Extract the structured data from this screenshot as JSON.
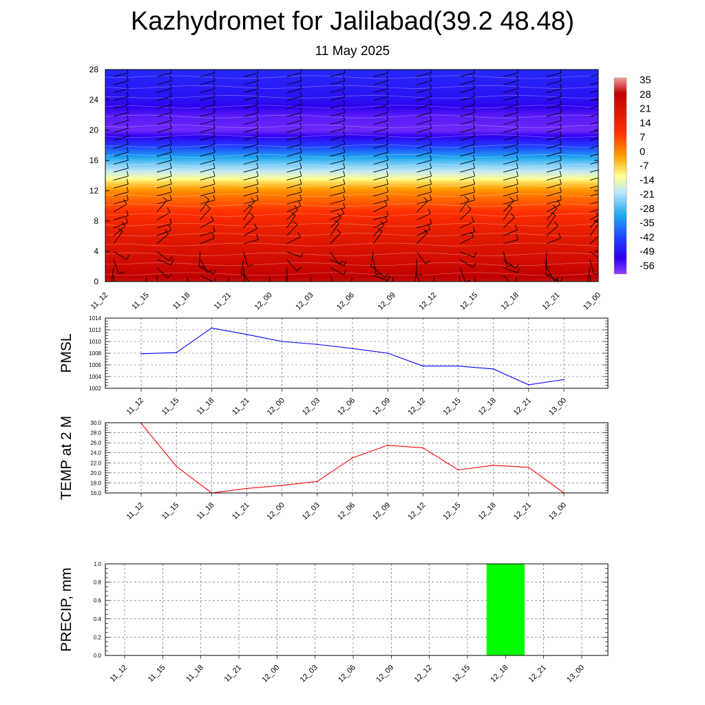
{
  "title": "Kazhydromet for Jalilabad(39.2 48.48)",
  "subtitle": "11 May 2025",
  "times": [
    "11_12",
    "11_15",
    "11_18",
    "11_21",
    "12_00",
    "12_03",
    "12_06",
    "12_09",
    "12_12",
    "12_15",
    "12_18",
    "12_21",
    "13_00"
  ],
  "colors": {
    "pmsl_line": "#0000ff",
    "temp_line": "#ff0000",
    "precip_bar": "#00ff00",
    "grid": "#555555"
  },
  "chart_data": [
    {
      "type": "heatmap",
      "name": "upper-air-section",
      "xlabel": "",
      "ylabel": "",
      "ylim": [
        0,
        28
      ],
      "y_ticks": [
        "0",
        "4",
        "8",
        "12",
        "16",
        "20",
        "24",
        "28"
      ],
      "colorbar_ticks": [
        "35",
        "28",
        "21",
        "14",
        "7",
        "0",
        "-7",
        "-14",
        "-21",
        "-28",
        "-35",
        "-42",
        "-49",
        "-56"
      ],
      "colorbar_range": [
        -63,
        42
      ],
      "temperature_profile": {
        "height": [
          0,
          2,
          4,
          6,
          8,
          10,
          12,
          13,
          14,
          16,
          18,
          20,
          22,
          24,
          28
        ],
        "temperature": [
          35,
          30,
          26,
          22,
          17,
          10,
          2,
          -5,
          -14,
          -28,
          -45,
          -60,
          -58,
          -52,
          -48
        ]
      },
      "wind_barbs": true
    },
    {
      "type": "line",
      "name": "pmsl",
      "ylabel": "PMSL",
      "ylim": [
        1002,
        1014
      ],
      "y_ticks": [
        "1002",
        "1004",
        "1006",
        "1008",
        "1010",
        "1012",
        "1014"
      ],
      "x": [
        "11_12",
        "11_15",
        "11_18",
        "11_21",
        "12_00",
        "12_03",
        "12_06",
        "12_09",
        "12_12",
        "12_15",
        "12_18",
        "12_21",
        "13_00"
      ],
      "values": [
        1007.9,
        1008.1,
        1012.3,
        1011.2,
        1010.0,
        1009.5,
        1008.8,
        1008.0,
        1005.8,
        1005.8,
        1005.3,
        1002.6,
        1003.5
      ]
    },
    {
      "type": "line",
      "name": "temp2m",
      "ylabel": "TEMP at 2 M",
      "ylim": [
        16,
        30
      ],
      "y_ticks": [
        "16.0",
        "18.0",
        "20.0",
        "22.0",
        "24.0",
        "26.0",
        "28.0",
        "30.0"
      ],
      "x": [
        "11_12",
        "11_15",
        "11_18",
        "11_21",
        "12_00",
        "12_03",
        "12_06",
        "12_09",
        "12_12",
        "12_15",
        "12_18",
        "12_21",
        "13_00"
      ],
      "values": [
        29.9,
        21.3,
        16.0,
        16.9,
        17.5,
        18.3,
        23.0,
        25.5,
        25.0,
        20.6,
        21.5,
        21.1,
        16.0
      ]
    },
    {
      "type": "bar",
      "name": "precip",
      "ylabel": "PRECIP, mm",
      "ylim": [
        0,
        1
      ],
      "y_ticks": [
        "0.0",
        "0.2",
        "0.4",
        "0.6",
        "0.8",
        "1.0"
      ],
      "x": [
        "11_12",
        "11_15",
        "11_18",
        "11_21",
        "12_00",
        "12_03",
        "12_06",
        "12_09",
        "12_12",
        "12_15",
        "12_18",
        "12_21",
        "13_00"
      ],
      "values": [
        0,
        0,
        0,
        0,
        0,
        0,
        0,
        0,
        0,
        0,
        1.0,
        0,
        0
      ]
    }
  ]
}
